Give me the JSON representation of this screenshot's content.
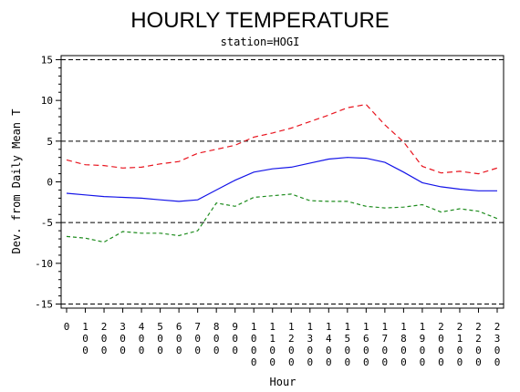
{
  "chart_data": {
    "type": "line",
    "title": "HOURLY TEMPERATURE",
    "subtitle": "station=HOGI",
    "xlabel": "Hour",
    "ylabel": "Dev. from Daily Mean T",
    "ylim": [
      -15.5,
      15.5
    ],
    "y_ticks": [
      15,
      10,
      5,
      0,
      -5,
      -10,
      -15
    ],
    "y_tick_labels": [
      "15",
      "10",
      "5",
      "0",
      "-5",
      "-10",
      "-15"
    ],
    "x": [
      0,
      100,
      200,
      300,
      400,
      500,
      600,
      700,
      800,
      900,
      1000,
      1100,
      1200,
      1300,
      1400,
      1500,
      1600,
      1700,
      1800,
      1900,
      2000,
      2100,
      2200,
      2300
    ],
    "x_tick_labels": [
      "0",
      "100",
      "200",
      "300",
      "400",
      "500",
      "600",
      "700",
      "800",
      "900",
      "1000",
      "1100",
      "1200",
      "1300",
      "1400",
      "1500",
      "1600",
      "1700",
      "1800",
      "1900",
      "2000",
      "2100",
      "2200",
      "2300"
    ],
    "reference_lines": [
      15,
      5,
      -5,
      -15
    ],
    "series": [
      {
        "color": "#e8141e",
        "dash": "6,4",
        "values": [
          2.7,
          2.1,
          2.0,
          1.7,
          1.8,
          2.2,
          2.5,
          3.5,
          4.0,
          4.5,
          5.5,
          6.0,
          6.6,
          7.4,
          8.2,
          9.1,
          9.5,
          7.0,
          4.9,
          1.9,
          1.1,
          1.3,
          1.0,
          1.7
        ]
      },
      {
        "color": "#1414e8",
        "dash": "",
        "values": [
          -1.4,
          -1.6,
          -1.8,
          -1.9,
          -2.0,
          -2.2,
          -2.4,
          -2.2,
          -1.0,
          0.2,
          1.2,
          1.6,
          1.8,
          2.3,
          2.8,
          3.0,
          2.9,
          2.4,
          1.2,
          -0.1,
          -0.6,
          -0.9,
          -1.1,
          -1.1
        ]
      },
      {
        "color": "#1e8c1e",
        "dash": "4,3",
        "values": [
          -6.7,
          -6.9,
          -7.4,
          -6.1,
          -6.3,
          -6.3,
          -6.6,
          -6.0,
          -2.6,
          -3.0,
          -1.9,
          -1.7,
          -1.5,
          -2.3,
          -2.4,
          -2.4,
          -3.0,
          -3.2,
          -3.1,
          -2.8,
          -3.7,
          -3.3,
          -3.6,
          -4.5
        ]
      }
    ]
  }
}
